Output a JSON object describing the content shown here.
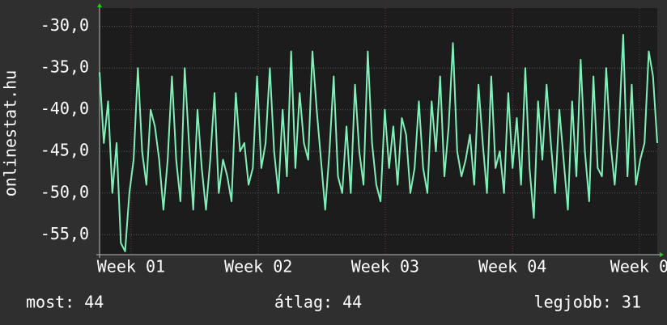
{
  "chart_data": {
    "type": "line",
    "y_label": "onlinestat.hu",
    "x": [
      0,
      1,
      2,
      3,
      4,
      5,
      6,
      7,
      8,
      9,
      10,
      11,
      12,
      13,
      14,
      15,
      16,
      17,
      18,
      19,
      20,
      21,
      22,
      23,
      24,
      25,
      26,
      27,
      28,
      29,
      30,
      31,
      32,
      33,
      34,
      35,
      36,
      37,
      38,
      39,
      40,
      41,
      42,
      43,
      44,
      45,
      46,
      47,
      48,
      49,
      50,
      51,
      52,
      53,
      54,
      55,
      56,
      57,
      58,
      59,
      60,
      61,
      62,
      63,
      64,
      65,
      66,
      67,
      68,
      69,
      70,
      71,
      72,
      73,
      74,
      75,
      76,
      77,
      78,
      79,
      80,
      81,
      82,
      83,
      84,
      85,
      86,
      87,
      88,
      89,
      90,
      91,
      92,
      93,
      94,
      95,
      96,
      97,
      98,
      99,
      100,
      101,
      102,
      103,
      104,
      105,
      106,
      107,
      108,
      109,
      110,
      111,
      112,
      113,
      114,
      115,
      116,
      117,
      118,
      119,
      120,
      121,
      122,
      123,
      124,
      125,
      126,
      127,
      128,
      129,
      130,
      131
    ],
    "series": [
      {
        "color": "#80f0b8",
        "values": [
          -35.5,
          -44,
          -39,
          -50,
          -44,
          -56,
          -57,
          -50,
          -46,
          -35,
          -45,
          -49,
          -40,
          -42,
          -46,
          -52,
          -46,
          -36,
          -46,
          -51,
          -35,
          -44,
          -52,
          -40,
          -47,
          -52,
          -46,
          -38,
          -50,
          -46,
          -48,
          -51,
          -38,
          -45,
          -44,
          -49,
          -47,
          -36,
          -47,
          -44,
          -35,
          -45,
          -50,
          -40,
          -48,
          -33,
          -47,
          -38,
          -44,
          -46,
          -33,
          -40,
          -46,
          -52,
          -45,
          -36,
          -48,
          -50,
          -42,
          -50,
          -37,
          -45,
          -49,
          -33,
          -44,
          -49,
          -51,
          -40,
          -47,
          -42,
          -49,
          -41,
          -43,
          -50,
          -47,
          -39,
          -47,
          -50,
          -39,
          -45,
          -36,
          -48,
          -42,
          -32,
          -45,
          -48,
          -46,
          -43,
          -49,
          -37,
          -44,
          -50,
          -36,
          -47,
          -45,
          -50,
          -38,
          -47,
          -41,
          -49,
          -35,
          -47,
          -53,
          -39,
          -46,
          -37,
          -44,
          -50,
          -40,
          -46,
          -52,
          -39,
          -48,
          -34,
          -45,
          -51,
          -36,
          -47,
          -48,
          -35,
          -44,
          -49,
          -42,
          -31,
          -48,
          -37,
          -49,
          -46,
          -44,
          -33,
          -36,
          -44
        ]
      }
    ],
    "xlim": [
      0,
      131
    ],
    "xticks": [
      {
        "value": 7.4,
        "label": "Week 01"
      },
      {
        "value": 37.3,
        "label": "Week 02"
      },
      {
        "value": 67.1,
        "label": "Week 03"
      },
      {
        "value": 97.0,
        "label": "Week 04"
      },
      {
        "value": 126.8,
        "label": "Week 0"
      }
    ],
    "ylim": [
      -57.4,
      -27.8
    ],
    "yticks": [
      {
        "value": -30,
        "label": "-30,0"
      },
      {
        "value": -35,
        "label": "-35,0"
      },
      {
        "value": -40,
        "label": "-40,0"
      },
      {
        "value": -45,
        "label": "-45,0"
      },
      {
        "value": -50,
        "label": "-50,0"
      },
      {
        "value": -55,
        "label": "-55,0"
      }
    ],
    "grid": true,
    "footer": [
      "most: 44",
      "átlag: 44",
      "legjobb: 31"
    ]
  }
}
